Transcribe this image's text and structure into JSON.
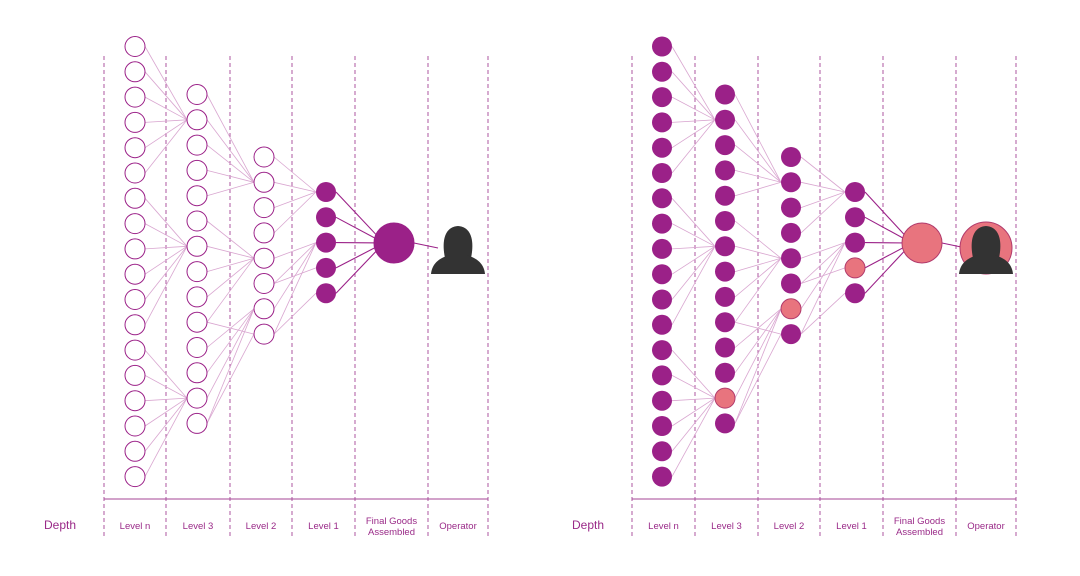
{
  "colors": {
    "primary": "#9b2188",
    "highlight": "#e8747e",
    "line": "#d9a6d0",
    "divider": "#a44596",
    "operator": "#333333"
  },
  "depth_label": "Depth",
  "columns": [
    {
      "label": "Level n"
    },
    {
      "label": "Level 3"
    },
    {
      "label": "Level 2"
    },
    {
      "label": "Level 1"
    },
    {
      "label": "Final Goods Assembled",
      "lines": [
        "Final Goods",
        "Assembled"
      ]
    },
    {
      "label": "Operator"
    }
  ],
  "levels": {
    "level_n": 18,
    "level_3": 14,
    "level_2": 8,
    "level_1": 5,
    "final": 1
  },
  "panels": [
    {
      "name": "left-panel",
      "level_n_fill": "outline",
      "level_3_fill": "outline",
      "level_2_fill": "outline",
      "level_1_fill": "solid",
      "final_color": "primary",
      "operator_circle": false,
      "highlights": []
    },
    {
      "name": "right-panel",
      "level_n_fill": "solid",
      "level_3_fill": "solid",
      "level_2_fill": "solid",
      "level_1_fill": "solid",
      "final_color": "highlight",
      "operator_circle": true,
      "highlights": [
        {
          "level": "level_3",
          "index": 12
        },
        {
          "level": "level_2",
          "index": 6
        },
        {
          "level": "level_1",
          "index": 3
        }
      ]
    }
  ]
}
